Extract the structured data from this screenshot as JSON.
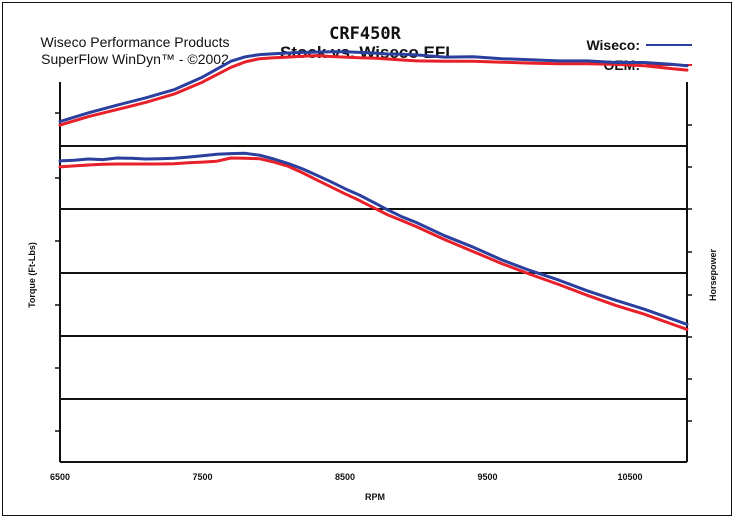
{
  "header": {
    "source_line1": "Wiseco Performance Products",
    "source_line2": "SuperFlow WinDyn™ - ©2002",
    "title_line1": "CRF450R",
    "title_line2": "Stock vs. Wiseco EFI"
  },
  "legend": [
    {
      "label": "Wiseco:",
      "color": "#2b3f9e"
    },
    {
      "label": "OEM:",
      "color": "#e8202a"
    }
  ],
  "chart_data": {
    "type": "line",
    "xlabel": "RPM",
    "ylabel_left": "Torque (Ft-Lbs)",
    "ylabel_right": "Horsepower",
    "xlim": [
      6500,
      10900
    ],
    "x_ticks": [
      6500,
      7500,
      8500,
      9500,
      10500
    ],
    "grid": "horizontal",
    "series": [
      {
        "name": "Wiseco",
        "measure": "Horsepower",
        "color": "#2b3f9e",
        "x": [
          6500,
          6700,
          6900,
          7100,
          7300,
          7500,
          7700,
          7800,
          7900,
          8000,
          8100,
          8200,
          8300,
          8400,
          8500,
          8600,
          8700,
          8800,
          8900,
          9000,
          9200,
          9400,
          9600,
          9800,
          10000,
          10200,
          10400,
          10600,
          10800,
          10900
        ],
        "y": [
          0.385,
          0.525,
          0.645,
          0.76,
          0.89,
          1.09,
          1.34,
          1.41,
          1.445,
          1.46,
          1.47,
          1.48,
          1.485,
          1.49,
          1.49,
          1.48,
          1.47,
          1.455,
          1.45,
          1.44,
          1.405,
          1.41,
          1.38,
          1.365,
          1.345,
          1.345,
          1.32,
          1.32,
          1.29,
          1.27
        ]
      },
      {
        "name": "OEM",
        "measure": "Horsepower",
        "color": "#e8202a",
        "x": [
          6500,
          6700,
          6900,
          7100,
          7300,
          7500,
          7700,
          7800,
          7900,
          8000,
          8100,
          8200,
          8300,
          8400,
          8500,
          8600,
          8700,
          8800,
          8900,
          9000,
          9200,
          9400,
          9600,
          9800,
          10000,
          10200,
          10400,
          10600,
          10800,
          10900
        ],
        "y": [
          0.33,
          0.465,
          0.575,
          0.69,
          0.82,
          1.01,
          1.245,
          1.33,
          1.38,
          1.395,
          1.405,
          1.42,
          1.43,
          1.415,
          1.405,
          1.395,
          1.39,
          1.375,
          1.36,
          1.345,
          1.34,
          1.34,
          1.325,
          1.31,
          1.3,
          1.3,
          1.29,
          1.27,
          1.22,
          1.2
        ]
      },
      {
        "name": "Wiseco",
        "measure": "Torque",
        "color": "#2b3f9e",
        "x": [
          6500,
          6600,
          6700,
          6800,
          6900,
          7000,
          7100,
          7200,
          7300,
          7400,
          7500,
          7600,
          7700,
          7800,
          7900,
          8000,
          8100,
          8200,
          8300,
          8400,
          8500,
          8600,
          8700,
          8800,
          8900,
          9000,
          9200,
          9400,
          9600,
          9800,
          10000,
          10200,
          10400,
          10600,
          10800,
          10900
        ],
        "y": [
          -0.235,
          -0.225,
          -0.205,
          -0.215,
          -0.19,
          -0.195,
          -0.205,
          -0.2,
          -0.195,
          -0.175,
          -0.155,
          -0.13,
          -0.12,
          -0.115,
          -0.145,
          -0.205,
          -0.275,
          -0.36,
          -0.46,
          -0.565,
          -0.675,
          -0.775,
          -0.89,
          -1.01,
          -1.12,
          -1.21,
          -1.42,
          -1.6,
          -1.8,
          -1.97,
          -2.12,
          -2.29,
          -2.44,
          -2.58,
          -2.74,
          -2.82
        ]
      },
      {
        "name": "OEM",
        "measure": "Torque",
        "color": "#e8202a",
        "x": [
          6500,
          6600,
          6700,
          6800,
          6900,
          7000,
          7100,
          7200,
          7300,
          7400,
          7500,
          7600,
          7700,
          7800,
          7900,
          8000,
          8100,
          8200,
          8300,
          8400,
          8500,
          8600,
          8700,
          8800,
          8900,
          9000,
          9200,
          9400,
          9600,
          9800,
          10000,
          10200,
          10400,
          10600,
          10800,
          10900
        ],
        "y": [
          -0.33,
          -0.315,
          -0.3,
          -0.29,
          -0.285,
          -0.285,
          -0.285,
          -0.285,
          -0.28,
          -0.265,
          -0.255,
          -0.24,
          -0.19,
          -0.195,
          -0.2,
          -0.255,
          -0.32,
          -0.42,
          -0.535,
          -0.645,
          -0.755,
          -0.86,
          -0.975,
          -1.09,
          -1.18,
          -1.275,
          -1.48,
          -1.67,
          -1.86,
          -2.03,
          -2.19,
          -2.36,
          -2.52,
          -2.66,
          -2.82,
          -2.9
        ]
      }
    ]
  }
}
